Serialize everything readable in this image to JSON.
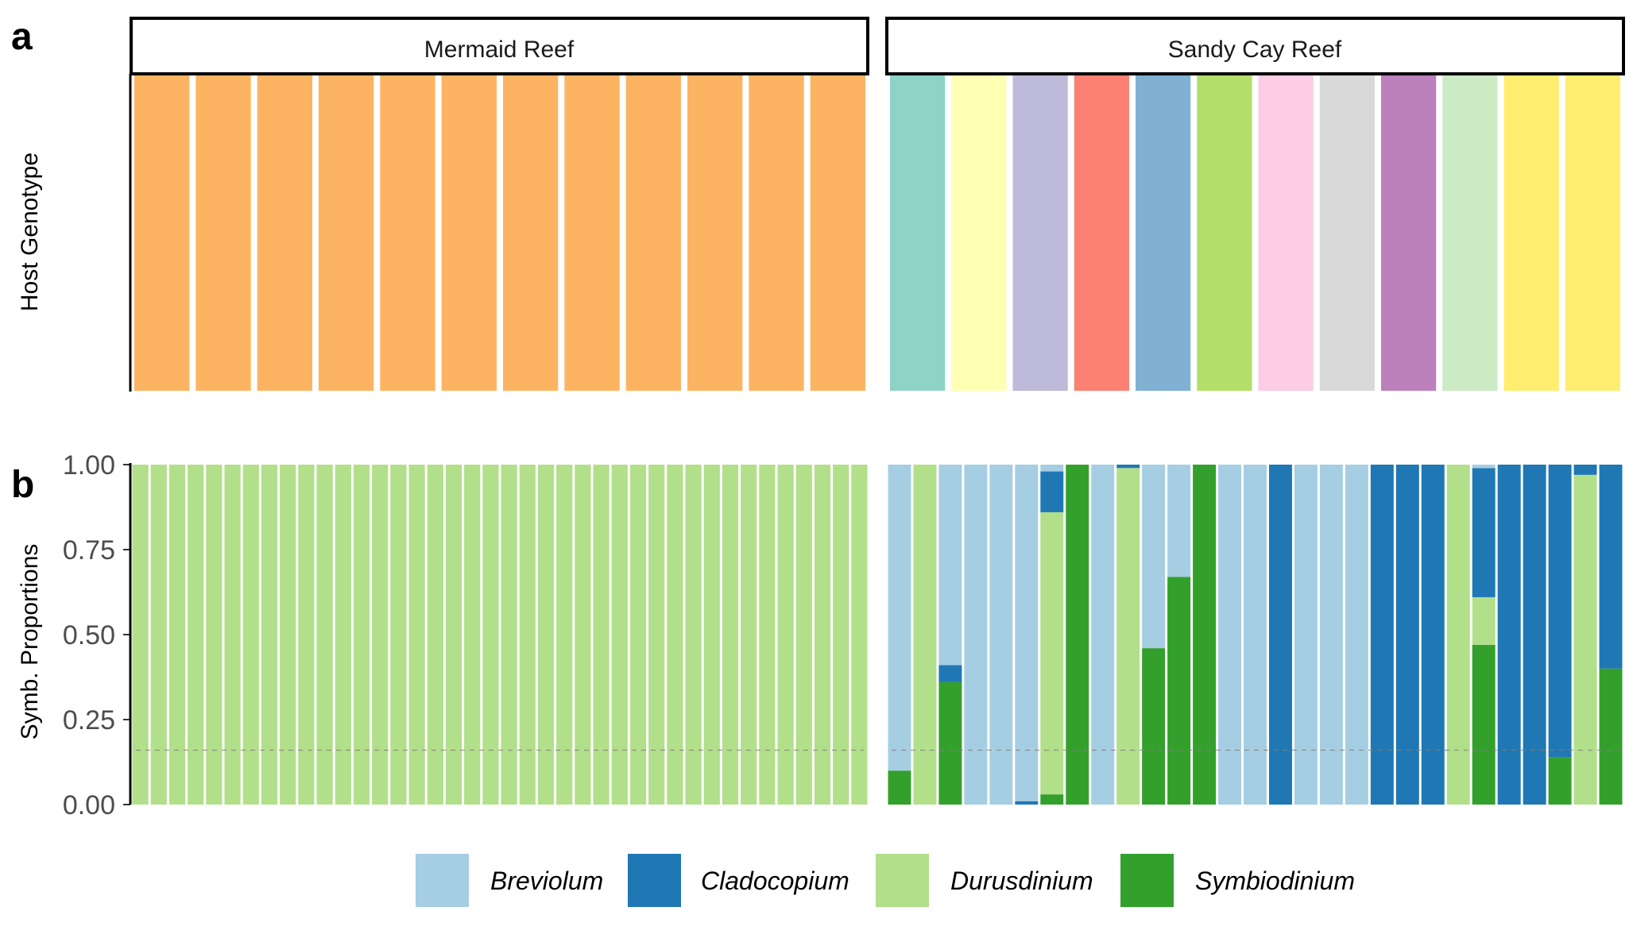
{
  "chart_data": [
    {
      "type": "bar",
      "panel": "a",
      "ylabel": "Host Genotype",
      "facets": [
        {
          "label": "Mermaid Reef",
          "colors": [
            "#FDB462",
            "#FDB462",
            "#FDB462",
            "#FDB462",
            "#FDB462",
            "#FDB462",
            "#FDB462",
            "#FDB462",
            "#FDB462",
            "#FDB462",
            "#FDB462",
            "#FDB462"
          ]
        },
        {
          "label": "Sandy Cay Reef",
          "colors": [
            "#8DD3C7",
            "#FFFFB3",
            "#BEBADA",
            "#FB8072",
            "#80B1D3",
            "#B3DE69",
            "#FCCDE5",
            "#D9D9D9",
            "#BC80BD",
            "#CCEBC5",
            "#FFED6F",
            "#FFED6F"
          ]
        }
      ]
    },
    {
      "type": "bar",
      "stacked": true,
      "panel": "b",
      "ylabel": "Symb. Proportions",
      "ylim": [
        0,
        1
      ],
      "yticks": [
        "0.00",
        "0.25",
        "0.50",
        "0.75",
        "1.00"
      ],
      "reference_line": 0.16,
      "legend": [
        {
          "name": "Breviolum",
          "color": "#A6CEE3"
        },
        {
          "name": "Cladocopium",
          "color": "#1F78B4"
        },
        {
          "name": "Durusdinium",
          "color": "#B2DF8A"
        },
        {
          "name": "Symbiodinium",
          "color": "#33A02C"
        }
      ],
      "stack_order": [
        "Symbiodinium",
        "Durusdinium",
        "Cladocopium",
        "Breviolum"
      ],
      "facets": [
        {
          "label": "Mermaid Reef",
          "samples": [
            [
              0,
              0,
              1,
              0
            ],
            [
              0,
              0,
              1,
              0
            ],
            [
              0,
              0,
              1,
              0
            ],
            [
              0,
              0,
              1,
              0
            ],
            [
              0,
              0,
              1,
              0
            ],
            [
              0,
              0,
              1,
              0
            ],
            [
              0,
              0,
              1,
              0
            ],
            [
              0,
              0,
              1,
              0
            ],
            [
              0,
              0,
              1,
              0
            ],
            [
              0,
              0,
              1,
              0
            ],
            [
              0,
              0,
              1,
              0
            ],
            [
              0,
              0,
              1,
              0
            ],
            [
              0,
              0,
              1,
              0
            ],
            [
              0,
              0,
              1,
              0
            ],
            [
              0,
              0,
              1,
              0
            ],
            [
              0,
              0,
              1,
              0
            ],
            [
              0,
              0,
              1,
              0
            ],
            [
              0,
              0,
              1,
              0
            ],
            [
              0,
              0,
              1,
              0
            ],
            [
              0,
              0,
              1,
              0
            ],
            [
              0,
              0,
              1,
              0
            ],
            [
              0,
              0,
              1,
              0
            ],
            [
              0,
              0,
              1,
              0
            ],
            [
              0,
              0,
              1,
              0
            ],
            [
              0,
              0,
              1,
              0
            ],
            [
              0,
              0,
              1,
              0
            ],
            [
              0,
              0,
              1,
              0
            ],
            [
              0,
              0,
              1,
              0
            ],
            [
              0,
              0,
              1,
              0
            ],
            [
              0,
              0,
              1,
              0
            ],
            [
              0,
              0,
              1,
              0
            ],
            [
              0,
              0,
              1,
              0
            ],
            [
              0,
              0,
              1,
              0
            ],
            [
              0,
              0,
              1,
              0
            ],
            [
              0,
              0,
              1,
              0
            ],
            [
              0,
              0,
              1,
              0
            ],
            [
              0,
              0,
              1,
              0
            ],
            [
              0,
              0,
              1,
              0
            ],
            [
              0,
              0,
              1,
              0
            ],
            [
              0,
              0,
              1,
              0
            ]
          ]
        },
        {
          "label": "Sandy Cay Reef",
          "samples": [
            [
              0.9,
              0,
              0,
              0.1
            ],
            [
              0,
              0,
              1.0,
              0
            ],
            [
              0.59,
              0.05,
              0,
              0.36
            ],
            [
              1.0,
              0,
              0,
              0
            ],
            [
              1.0,
              0,
              0,
              0
            ],
            [
              0.99,
              0.01,
              0,
              0
            ],
            [
              0.02,
              0.12,
              0.83,
              0.03
            ],
            [
              0,
              0,
              0,
              1.0
            ],
            [
              1.0,
              0,
              0,
              0
            ],
            [
              0,
              0.01,
              0.99,
              0
            ],
            [
              0.54,
              0,
              0,
              0.46
            ],
            [
              0.33,
              0,
              0,
              0.67
            ],
            [
              0,
              0,
              0,
              1.0
            ],
            [
              1.0,
              0,
              0,
              0
            ],
            [
              1.0,
              0,
              0,
              0
            ],
            [
              0,
              1.0,
              0,
              0
            ],
            [
              1.0,
              0,
              0,
              0
            ],
            [
              1.0,
              0,
              0,
              0
            ],
            [
              1.0,
              0,
              0,
              0
            ],
            [
              0,
              1.0,
              0,
              0
            ],
            [
              0,
              1.0,
              0,
              0
            ],
            [
              0,
              1.0,
              0,
              0
            ],
            [
              0,
              0,
              1.0,
              0
            ],
            [
              0.01,
              0.38,
              0.14,
              0.47
            ],
            [
              0,
              1.0,
              0,
              0
            ],
            [
              0,
              1.0,
              0,
              0
            ],
            [
              0,
              0.86,
              0,
              0.14
            ],
            [
              0,
              0.03,
              0.97,
              0
            ],
            [
              0,
              0.6,
              0,
              0.4
            ]
          ]
        }
      ]
    }
  ]
}
